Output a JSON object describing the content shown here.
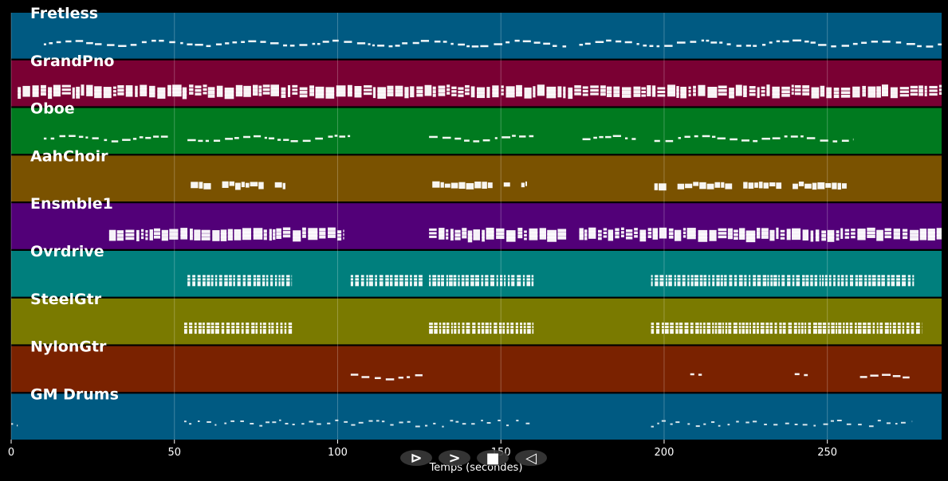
{
  "chart_data": {
    "type": "piano-roll",
    "xlabel": "Temps (secondes)",
    "xlim": [
      0,
      285
    ],
    "xticks": [
      0,
      50,
      100,
      150,
      200,
      250
    ],
    "grid": true,
    "background": "#000000",
    "tracks": [
      {
        "name": "Fretless",
        "color": "#005a82",
        "segments": [
          [
            10,
            170
          ],
          [
            174,
            285
          ]
        ],
        "style": "sparse-line"
      },
      {
        "name": "GrandPno",
        "color": "#7a0033",
        "segments": [
          [
            2,
            285
          ]
        ],
        "style": "dense"
      },
      {
        "name": "Oboe",
        "color": "#007a1f",
        "segments": [
          [
            10,
            48
          ],
          [
            54,
            104
          ],
          [
            128,
            160
          ],
          [
            175,
            192
          ],
          [
            197,
            258
          ]
        ],
        "style": "sparse-line"
      },
      {
        "name": "AahChoir",
        "color": "#7a5200",
        "segments": [
          [
            55,
            84
          ],
          [
            129,
            158
          ],
          [
            197,
            256
          ]
        ],
        "style": "blocks"
      },
      {
        "name": "Ensmble1",
        "color": "#520078",
        "segments": [
          [
            30,
            102
          ],
          [
            128,
            170
          ],
          [
            174,
            285
          ]
        ],
        "style": "dense"
      },
      {
        "name": "Ovrdrive",
        "color": "#007f7d",
        "segments": [
          [
            54,
            86
          ],
          [
            104,
            126
          ],
          [
            128,
            160
          ],
          [
            196,
            277
          ]
        ],
        "style": "comb"
      },
      {
        "name": "SteelGtr",
        "color": "#7a7a00",
        "segments": [
          [
            53,
            86
          ],
          [
            128,
            160
          ],
          [
            196,
            279
          ]
        ],
        "style": "comb"
      },
      {
        "name": "NylonGtr",
        "color": "#7a2200",
        "segments": [
          [
            104,
            126
          ],
          [
            208,
            212
          ],
          [
            240,
            244
          ],
          [
            260,
            276
          ]
        ],
        "style": "sparse-line"
      },
      {
        "name": "GM Drums",
        "color": "#005a82",
        "segments": [
          [
            0,
            2
          ],
          [
            53,
            160
          ],
          [
            196,
            276
          ]
        ],
        "style": "drums"
      }
    ]
  },
  "controls": [
    {
      "name": "play-button",
      "icon": "play-icon",
      "glyph": "⊳"
    },
    {
      "name": "forward-button",
      "icon": "chevron-right-icon",
      "glyph": ">"
    },
    {
      "name": "stop-button",
      "icon": "stop-icon",
      "glyph": "■"
    },
    {
      "name": "back-button",
      "icon": "rewind-icon",
      "glyph": "◁"
    }
  ]
}
